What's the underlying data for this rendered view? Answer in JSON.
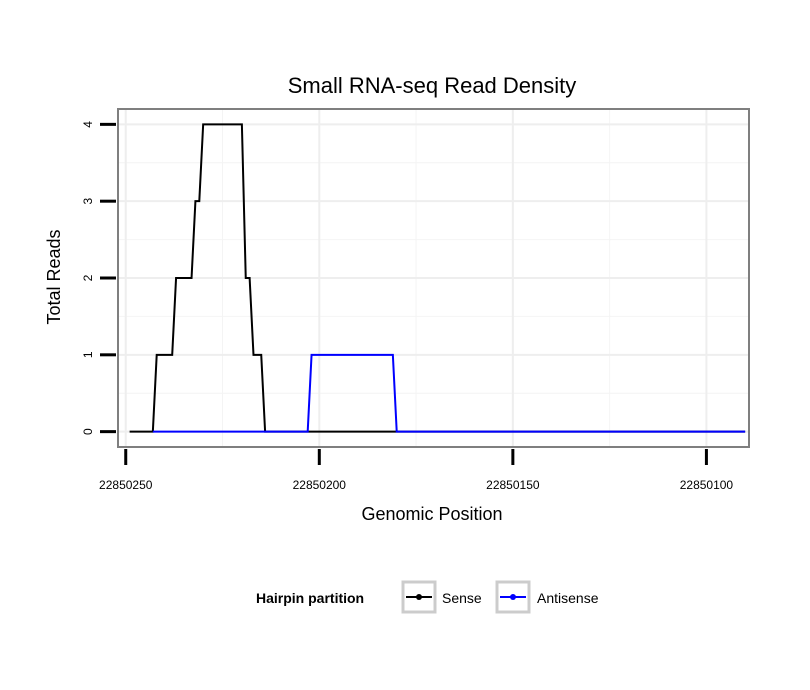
{
  "chart_data": {
    "type": "line",
    "title": "Small RNA-seq Read Density",
    "xlabel": "Genomic Position",
    "ylabel": "Total Reads",
    "x_reversed": true,
    "xlim": [
      22850252,
      22850089
    ],
    "ylim": [
      -0.2,
      4.2
    ],
    "xticks": [
      22850250,
      22850200,
      22850150,
      22850100
    ],
    "xtick_labels": [
      "22850250",
      "22850200",
      "22850150",
      "22850100"
    ],
    "yticks": [
      0,
      1,
      2,
      3,
      4
    ],
    "ytick_labels": [
      "0",
      "1",
      "2",
      "3",
      "4"
    ],
    "grid": true,
    "legend": {
      "title": "Hairpin partition",
      "position": "bottom",
      "entries": [
        "Sense",
        "Antisense"
      ]
    },
    "series": [
      {
        "name": "Sense",
        "color": "#000000",
        "x": [
          22850249,
          22850243,
          22850242,
          22850238,
          22850237,
          22850233,
          22850232,
          22850231,
          22850230,
          22850227,
          22850226,
          22850224,
          22850223,
          22850220,
          22850219,
          22850218,
          22850217,
          22850215,
          22850214,
          22850090
        ],
        "y": [
          0,
          0,
          1,
          1,
          2,
          2,
          3,
          3,
          4,
          4,
          4,
          4,
          4,
          4,
          2,
          2,
          1,
          1,
          0,
          0
        ]
      },
      {
        "name": "Antisense",
        "color": "#0000ff",
        "x": [
          22850243,
          22850203,
          22850202,
          22850181,
          22850180,
          22850090
        ],
        "y": [
          0,
          0,
          1,
          1,
          0,
          0
        ]
      }
    ]
  }
}
